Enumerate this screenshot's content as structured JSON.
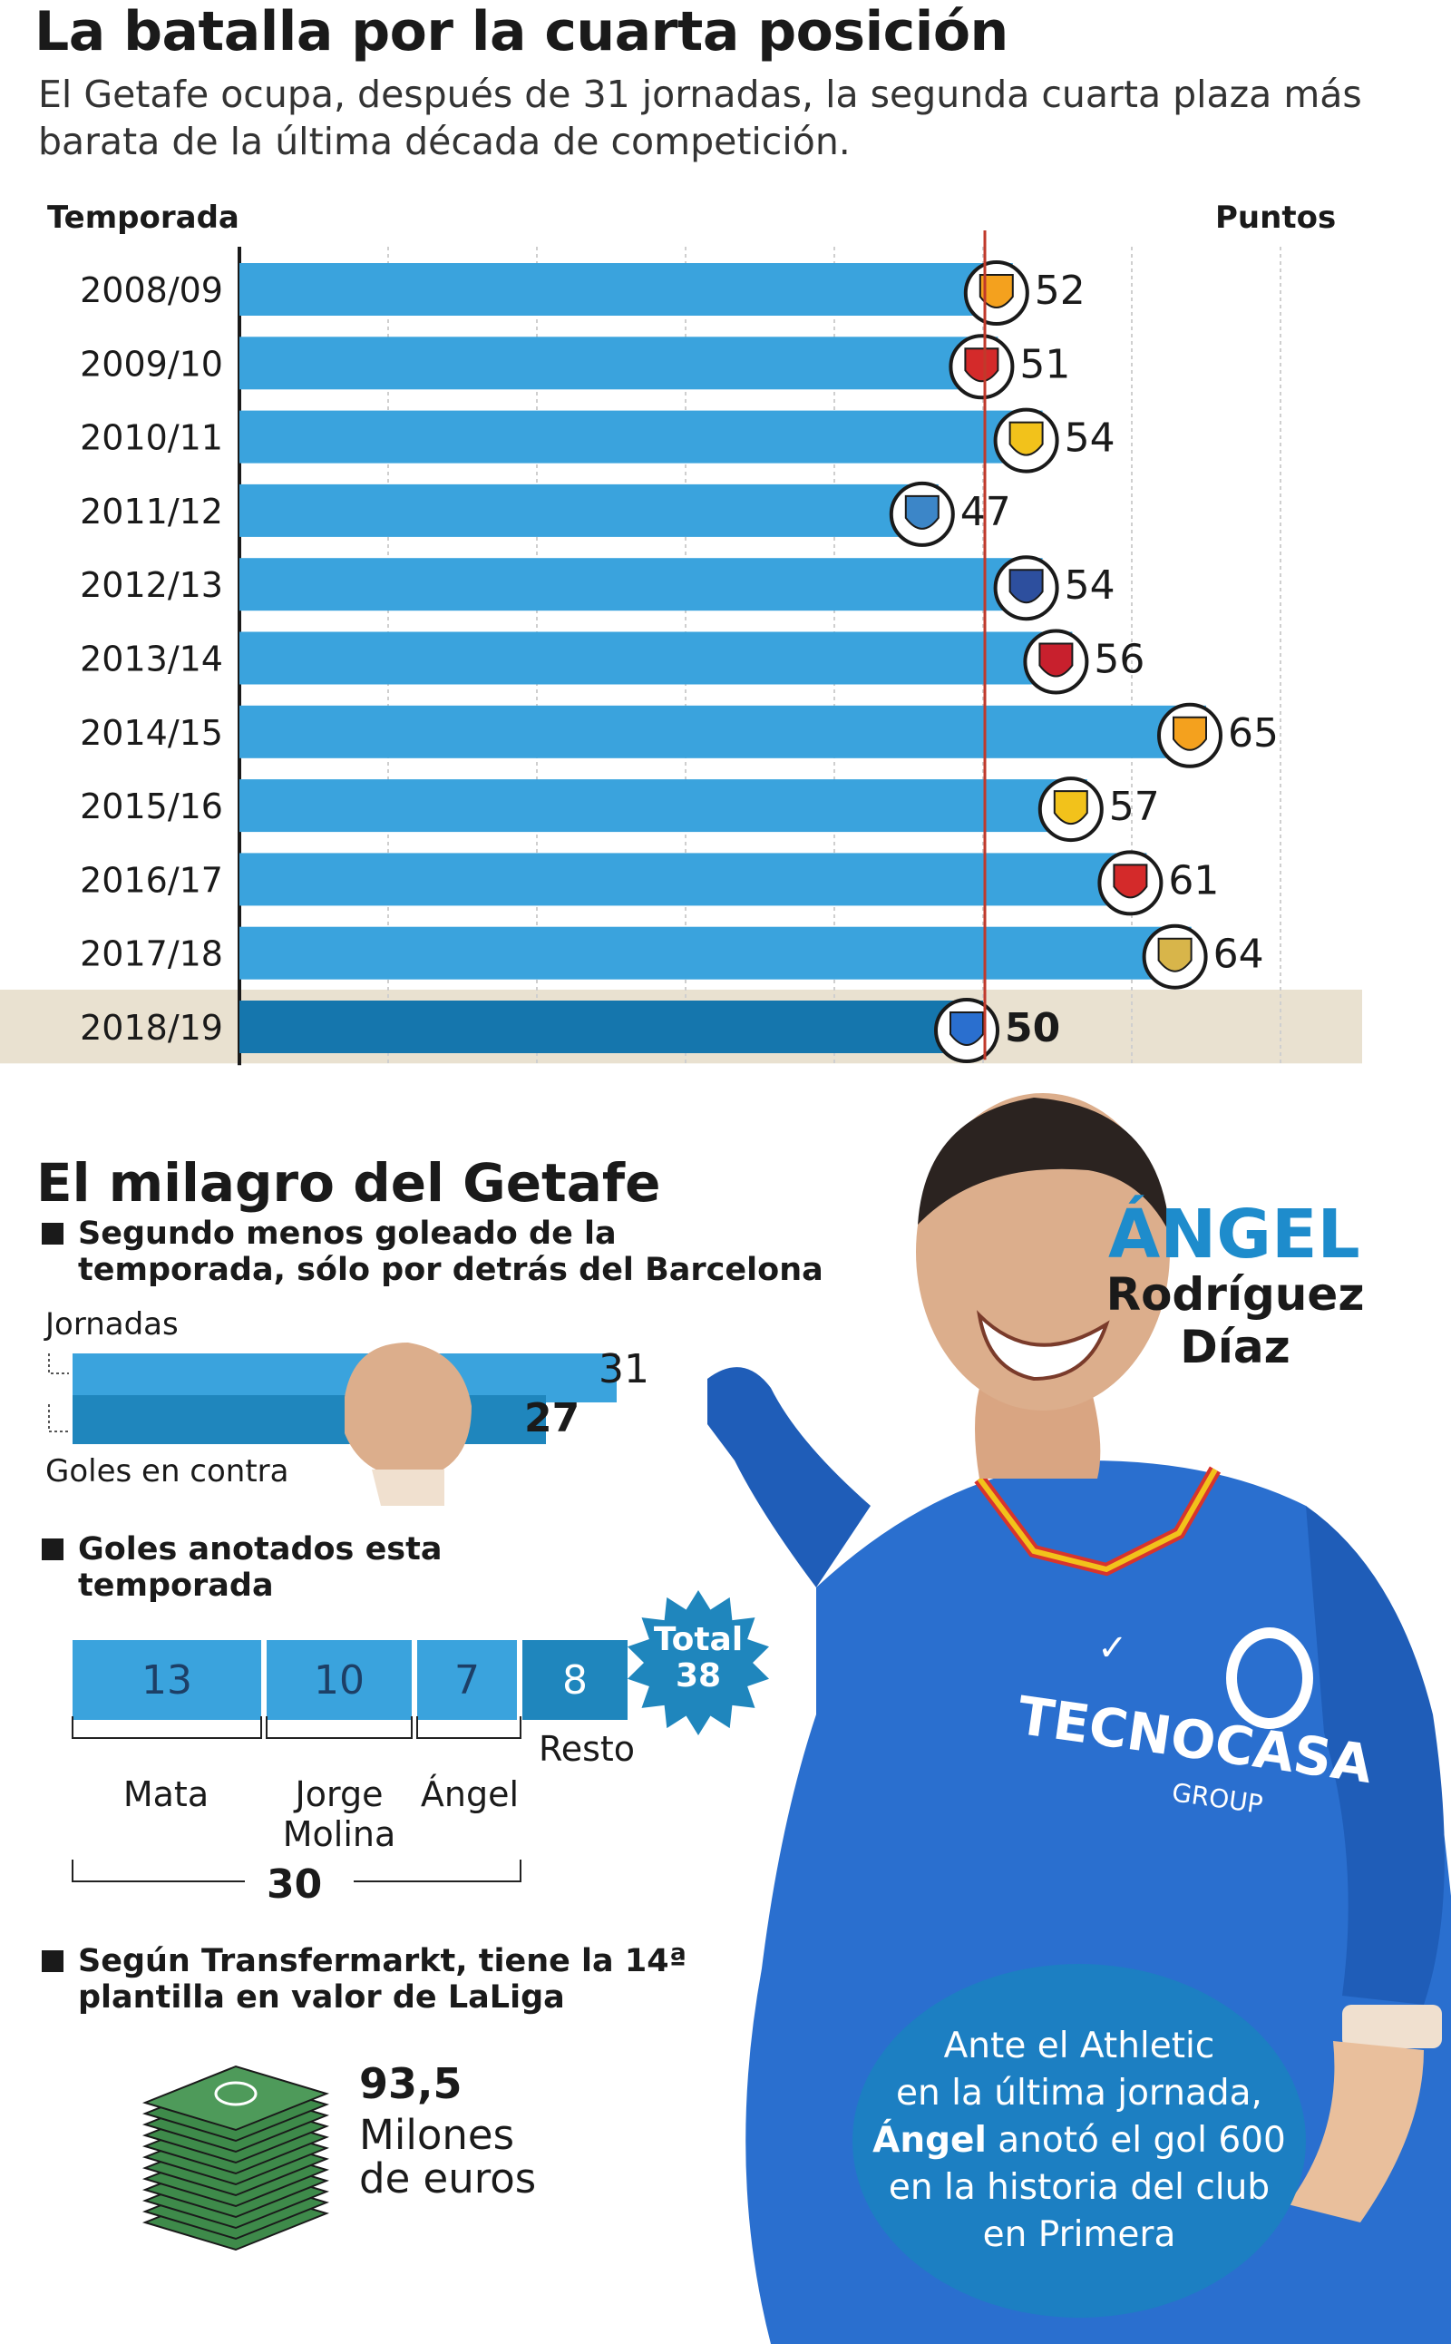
{
  "title": "La batalla por la cuarta posición",
  "subtitle": "El Getafe ocupa, después de 31 jornadas, la segunda cuarta plaza más barata de la última década de competición.",
  "col_left": "Temporada",
  "col_right": "Puntos",
  "colors": {
    "bar": "#3aa3dd",
    "bar_highlight": "#1576ad",
    "highlight_row": "#e9e1d0",
    "ref_line": "#c0392b"
  },
  "chart_data": {
    "type": "bar",
    "orientation": "horizontal",
    "title": "La batalla por la cuarta posición",
    "categories": [
      "2008/09",
      "2009/10",
      "2010/11",
      "2011/12",
      "2012/13",
      "2013/14",
      "2014/15",
      "2015/16",
      "2016/17",
      "2017/18",
      "2018/19"
    ],
    "values": [
      52,
      51,
      54,
      47,
      54,
      56,
      65,
      57,
      61,
      64,
      50
    ],
    "clubs": [
      "valencia",
      "sevilla",
      "villarreal",
      "malaga",
      "real-sociedad",
      "athletic",
      "valencia",
      "villarreal",
      "sevilla",
      "real-madrid",
      "getafe"
    ],
    "highlight_index": 10,
    "reference_value": 50,
    "xlim": [
      0,
      70
    ],
    "xlabel": "Puntos",
    "ylabel": "Temporada",
    "grid": true
  },
  "section2": {
    "title": "El milagro del Getafe",
    "bullet1": [
      "Segundo menos goleado de la",
      "temporada, sólo por detrás del Barcelona"
    ],
    "label_top": "Jornadas",
    "label_bottom": "Goles en contra",
    "jornadas": 31,
    "goles_contra": 27,
    "jornadas_text": "31",
    "goles_text": "27",
    "bullet2": [
      "Goles anotados esta",
      "temporada"
    ],
    "goals": [
      {
        "name": "Mata",
        "value": 13,
        "value_text": "13"
      },
      {
        "name": "Jorge Molina",
        "line1": "Jorge",
        "line2": "Molina",
        "value": 10,
        "value_text": "10"
      },
      {
        "name": "Ángel",
        "value": 7,
        "value_text": "7"
      },
      {
        "name": "Resto",
        "value": 8,
        "value_text": "8"
      }
    ],
    "total_line1": "Total",
    "total_line2": "38",
    "subtotal": "30",
    "bullet3": [
      "Según Transfermarkt, tiene la 14ª",
      "plantilla en valor de LaLiga"
    ],
    "value_number": "93,5",
    "value_line1": "Milones",
    "value_line2": "de euros"
  },
  "player": {
    "name_first": "ÁNGEL",
    "name_second": "Rodríguez",
    "name_third": "Díaz",
    "sponsor": "TECNOCASA",
    "sponsor_sub": "GROUP"
  },
  "note": {
    "line1": "Ante el Athletic",
    "line2": "en la última jornada,",
    "line3_bold": "Ángel",
    "line3_rest": " anotó el gol 600",
    "line4": "en la historia del club",
    "line5": "en Primera"
  }
}
